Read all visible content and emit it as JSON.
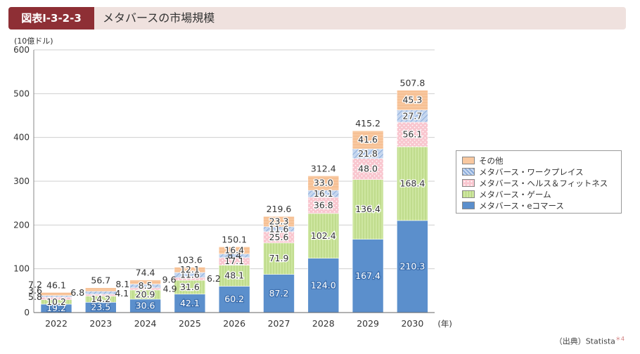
{
  "header": {
    "figure_label": "図表Ⅰ-3-2-3",
    "title": "メタバースの市場規模"
  },
  "source": {
    "text": "（出典）Statista",
    "note_mark": "＊4"
  },
  "colors": {
    "ecommerce": "#5b8fcc",
    "game": "#c9e39a",
    "health": "#f6b7c3",
    "work": "#a9c2e6",
    "other": "#f6c49c"
  },
  "chart_data": {
    "type": "bar",
    "stacked": true,
    "unit_label": "(10億ドル)",
    "year_unit": "(年)",
    "ylim": [
      0,
      600
    ],
    "yticks": [
      0,
      100,
      200,
      300,
      400,
      500,
      600
    ],
    "categories": [
      "2022",
      "2023",
      "2024",
      "2025",
      "2026",
      "2027",
      "2028",
      "2029",
      "2030"
    ],
    "series": [
      {
        "name": "メタバース・eコマース",
        "key": "ecommerce",
        "values": [
          19.2,
          23.5,
          30.6,
          42.1,
          60.2,
          87.2,
          124.0,
          167.4,
          210.3
        ]
      },
      {
        "name": "メタバース・ゲーム",
        "key": "game",
        "values": [
          10.2,
          14.2,
          20.9,
          31.6,
          48.1,
          71.9,
          102.4,
          136.4,
          168.4
        ]
      },
      {
        "name": "メタバース・ヘルス＆フィットネス",
        "key": "health",
        "values": [
          5.8,
          4.1,
          4.9,
          6.2,
          17.1,
          25.6,
          36.8,
          48.0,
          56.1
        ]
      },
      {
        "name": "メタバース・ワークプレイス",
        "key": "work",
        "values": [
          3.6,
          6.8,
          8.5,
          11.6,
          8.4,
          11.6,
          16.1,
          21.8,
          27.7
        ]
      },
      {
        "name": "その他",
        "key": "other",
        "values": [
          7.2,
          8.1,
          9.6,
          12.1,
          16.4,
          23.3,
          33.0,
          41.6,
          45.3
        ]
      }
    ],
    "labels": [
      [
        "19.2",
        "10.2",
        "5.8",
        "3.6",
        "7.2"
      ],
      [
        "23.5",
        "14.2",
        "4.1",
        "6.8",
        "8.1"
      ],
      [
        "30.6",
        "20.9",
        "4.9",
        "8.5",
        "9.6"
      ],
      [
        "42.1",
        "31.6",
        "6.2",
        "11.6",
        "12.1"
      ],
      [
        "60.2",
        "48.1",
        "17.1",
        "8.4",
        "16.4"
      ],
      [
        "87.2",
        "71.9",
        "25.6",
        "11.6",
        "23.3"
      ],
      [
        "124.0",
        "102.4",
        "36.8",
        "16.1",
        "33.0"
      ],
      [
        "167.4",
        "136.4",
        "48.0",
        "21.8",
        "41.6"
      ],
      [
        "210.3",
        "168.4",
        "56.1",
        "27.7",
        "45.3"
      ]
    ],
    "totals": [
      "46.1",
      "56.7",
      "74.4",
      "103.6",
      "150.1",
      "219.6",
      "312.4",
      "415.2",
      "507.8"
    ],
    "legend_order": [
      "other",
      "work",
      "health",
      "game",
      "ecommerce"
    ],
    "legend_position": "right"
  }
}
